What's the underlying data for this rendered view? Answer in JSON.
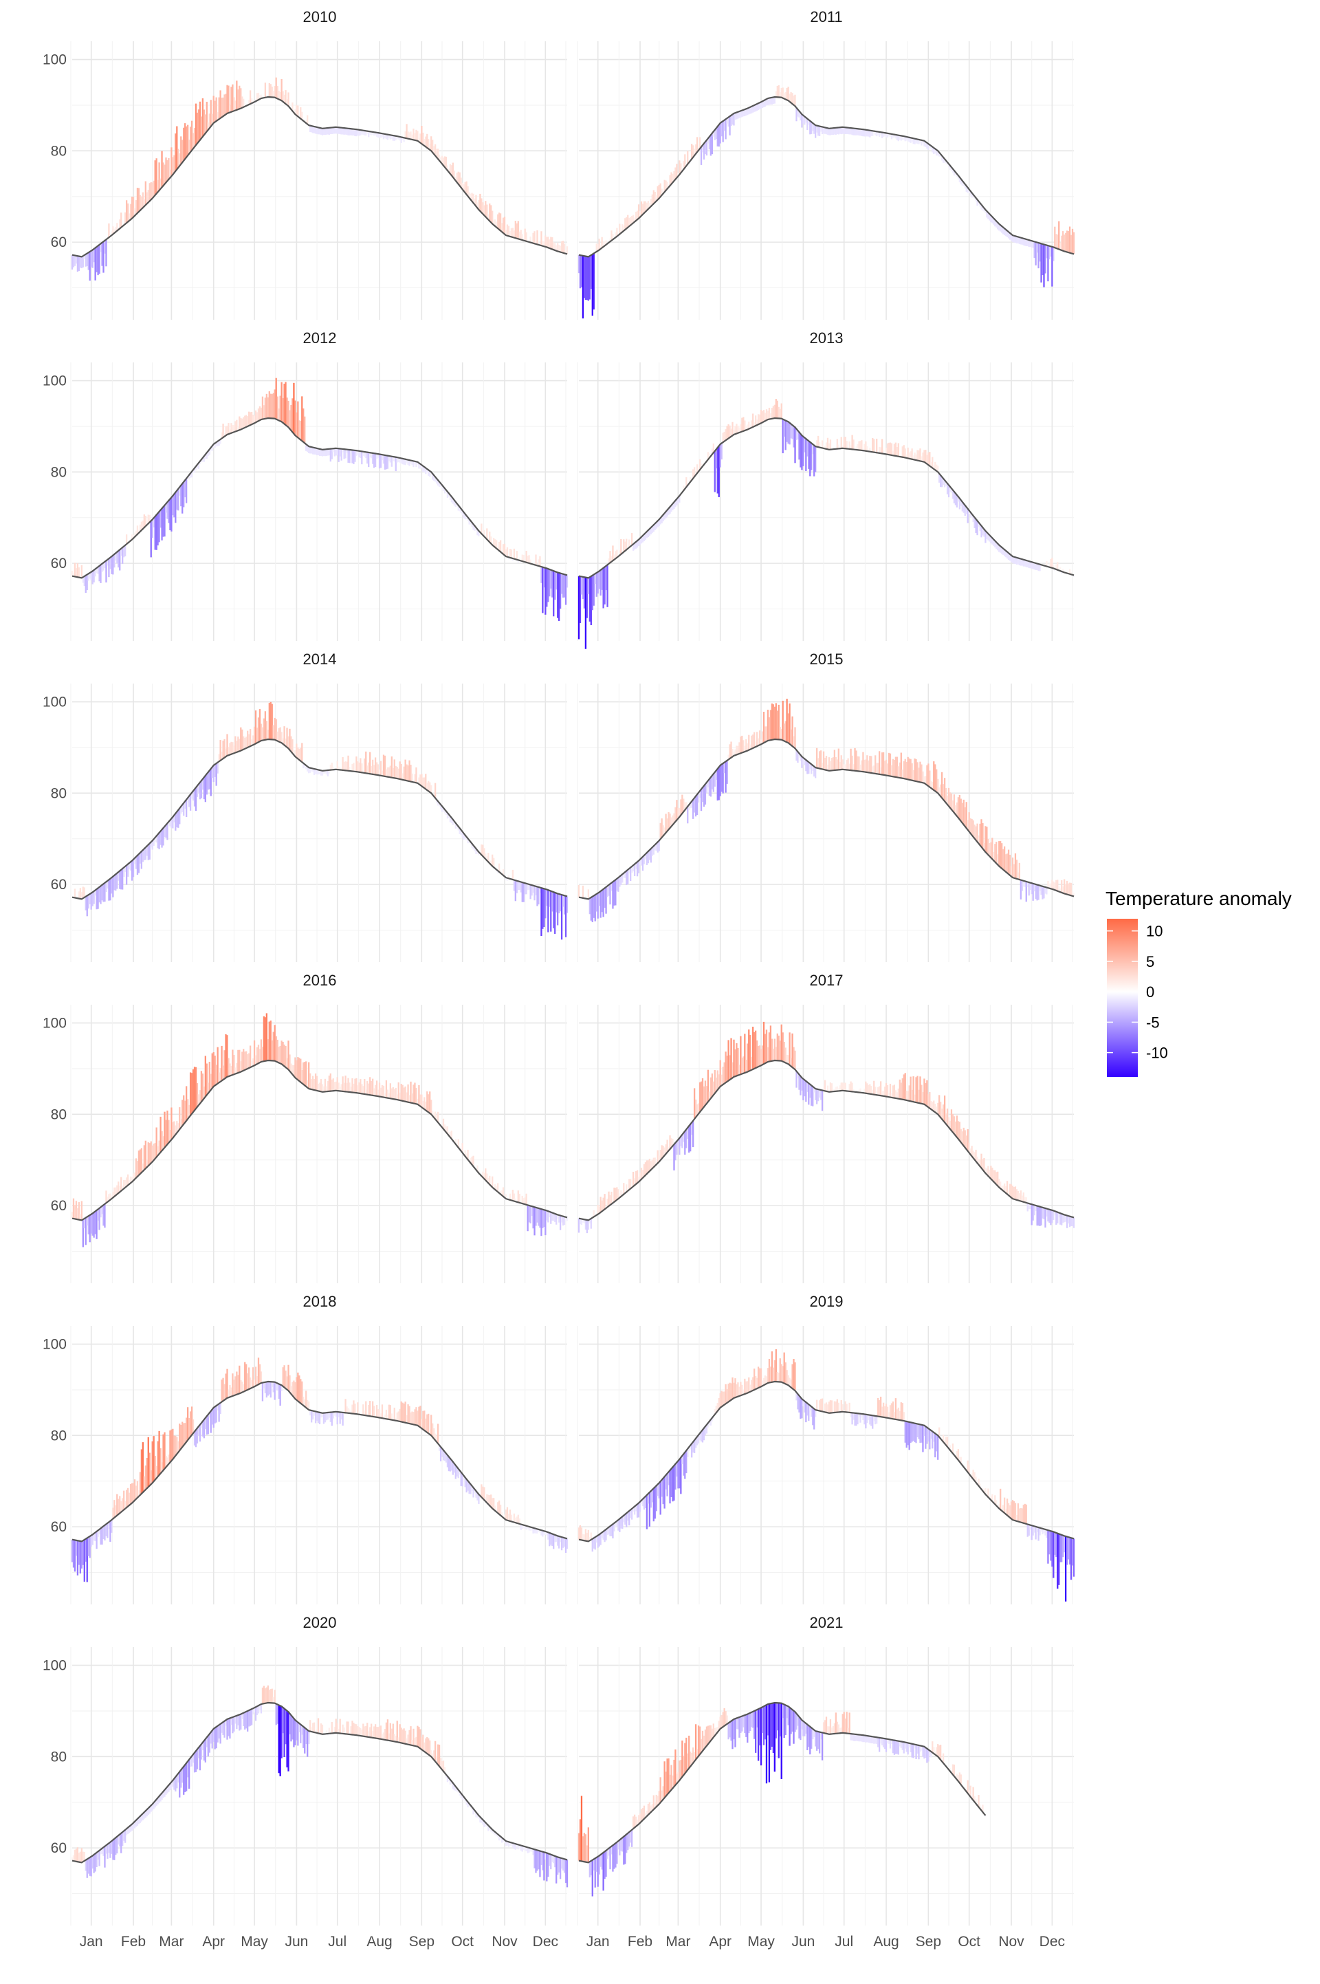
{
  "chart_data": {
    "type": "bar",
    "title": "",
    "xlabel": "",
    "ylabel": "",
    "ylim": [
      43,
      104
    ],
    "y_ticks": [
      60,
      80,
      100
    ],
    "y_tick_labels": [
      "60",
      "80",
      "100"
    ],
    "x_domain_days": [
      1,
      365
    ],
    "x_ticks_day": [
      15,
      46,
      74,
      105,
      135,
      166,
      196,
      227,
      258,
      288,
      319,
      349
    ],
    "x_tick_labels": [
      "Jan",
      "Feb",
      "Mar",
      "Apr",
      "May",
      "Jun",
      "Jul",
      "Aug",
      "Sep",
      "Oct",
      "Nov",
      "Dec"
    ],
    "grid": true,
    "legend": {
      "title": "Temperature anomaly",
      "position": "right",
      "ticks": [
        10,
        5,
        0,
        -5,
        -10
      ],
      "tick_labels": [
        "10",
        "5",
        "0",
        "-5",
        "-10"
      ],
      "range": [
        -14,
        12
      ],
      "low_color": "#3300ff",
      "mid_color": "#ffffff",
      "high_color": "#ff6a45"
    },
    "normal_line_color": "#555555",
    "normal_curve": {
      "day": [
        1,
        8,
        16,
        30,
        45,
        60,
        75,
        90,
        105,
        115,
        125,
        135,
        140,
        145,
        150,
        155,
        160,
        165,
        175,
        185,
        195,
        210,
        225,
        240,
        255,
        265,
        272,
        280,
        290,
        300,
        310,
        320,
        335,
        350,
        358,
        365
      ],
      "temp": [
        57.2,
        56.8,
        58.3,
        61.5,
        65.2,
        69.6,
        74.8,
        80.5,
        86.1,
        88.2,
        89.3,
        90.7,
        91.5,
        91.8,
        91.7,
        91.0,
        89.8,
        88.0,
        85.6,
        84.9,
        85.2,
        84.7,
        84.0,
        83.2,
        82.2,
        80.0,
        77.5,
        74.6,
        70.8,
        67.1,
        64.0,
        61.5,
        60.2,
        58.9,
        58.0,
        57.4
      ]
    },
    "panels": [
      {
        "name": "2010",
        "last_day": 365,
        "pattern": [
          [
            1,
            12,
            -2.5
          ],
          [
            13,
            26,
            -4.5
          ],
          [
            27,
            40,
            1.5
          ],
          [
            41,
            60,
            3.5
          ],
          [
            61,
            75,
            5
          ],
          [
            76,
            100,
            6
          ],
          [
            101,
            125,
            4
          ],
          [
            126,
            145,
            1.5
          ],
          [
            146,
            160,
            3
          ],
          [
            161,
            175,
            1
          ],
          [
            176,
            210,
            -1.5
          ],
          [
            211,
            245,
            -1
          ],
          [
            246,
            275,
            2.5
          ],
          [
            276,
            300,
            2
          ],
          [
            301,
            330,
            2.5
          ],
          [
            331,
            345,
            1.5
          ],
          [
            346,
            365,
            2
          ]
        ]
      },
      {
        "name": "2011",
        "last_day": 365,
        "pattern": [
          [
            1,
            12,
            -9
          ],
          [
            13,
            30,
            1
          ],
          [
            31,
            60,
            2
          ],
          [
            61,
            90,
            1.5
          ],
          [
            91,
            115,
            -3
          ],
          [
            116,
            145,
            -1.5
          ],
          [
            146,
            160,
            2
          ],
          [
            161,
            180,
            -2
          ],
          [
            181,
            215,
            -1.5
          ],
          [
            216,
            250,
            -1
          ],
          [
            251,
            300,
            -1
          ],
          [
            301,
            335,
            -1.5
          ],
          [
            336,
            350,
            -6
          ],
          [
            351,
            365,
            4
          ]
        ]
      },
      {
        "name": "2012",
        "last_day": 365,
        "pattern": [
          [
            1,
            8,
            1.5
          ],
          [
            9,
            40,
            -3
          ],
          [
            41,
            58,
            1.5
          ],
          [
            59,
            85,
            -5
          ],
          [
            86,
            110,
            -1
          ],
          [
            111,
            140,
            2
          ],
          [
            141,
            150,
            4
          ],
          [
            151,
            172,
            7
          ],
          [
            173,
            190,
            -1.5
          ],
          [
            191,
            240,
            -2
          ],
          [
            241,
            300,
            -1
          ],
          [
            301,
            345,
            1
          ],
          [
            346,
            365,
            -7
          ]
        ]
      },
      {
        "name": "2013",
        "last_day": 365,
        "pattern": [
          [
            1,
            10,
            -10
          ],
          [
            11,
            22,
            -6
          ],
          [
            23,
            40,
            1.5
          ],
          [
            41,
            75,
            -1.5
          ],
          [
            76,
            100,
            1
          ],
          [
            101,
            106,
            -8
          ],
          [
            107,
            140,
            2
          ],
          [
            141,
            150,
            3
          ],
          [
            151,
            175,
            -5
          ],
          [
            176,
            200,
            1
          ],
          [
            201,
            240,
            1.5
          ],
          [
            241,
            265,
            2
          ],
          [
            266,
            300,
            -2
          ],
          [
            301,
            340,
            -1.5
          ],
          [
            341,
            365,
            1
          ]
        ]
      },
      {
        "name": "2014",
        "last_day": 365,
        "pattern": [
          [
            1,
            10,
            1
          ],
          [
            11,
            40,
            -3
          ],
          [
            41,
            60,
            -3
          ],
          [
            61,
            90,
            -2.5
          ],
          [
            91,
            108,
            -4
          ],
          [
            109,
            135,
            3.5
          ],
          [
            136,
            148,
            5.5
          ],
          [
            149,
            170,
            3
          ],
          [
            171,
            190,
            -1
          ],
          [
            191,
            215,
            1.5
          ],
          [
            216,
            250,
            3
          ],
          [
            251,
            268,
            1.5
          ],
          [
            269,
            300,
            -1
          ],
          [
            301,
            325,
            1
          ],
          [
            326,
            345,
            -3
          ],
          [
            346,
            365,
            -7
          ]
        ]
      },
      {
        "name": "2015",
        "last_day": 365,
        "pattern": [
          [
            1,
            8,
            1.5
          ],
          [
            9,
            30,
            -4
          ],
          [
            31,
            60,
            -2
          ],
          [
            61,
            80,
            3
          ],
          [
            81,
            100,
            -3
          ],
          [
            101,
            110,
            -5
          ],
          [
            111,
            135,
            2.5
          ],
          [
            136,
            160,
            6
          ],
          [
            161,
            175,
            -2
          ],
          [
            176,
            200,
            3
          ],
          [
            201,
            260,
            3.5
          ],
          [
            261,
            290,
            4
          ],
          [
            291,
            325,
            4
          ],
          [
            326,
            345,
            -3
          ],
          [
            346,
            365,
            2
          ]
        ]
      },
      {
        "name": "2016",
        "last_day": 365,
        "pattern": [
          [
            1,
            8,
            3
          ],
          [
            9,
            25,
            -4
          ],
          [
            26,
            45,
            2
          ],
          [
            46,
            60,
            4
          ],
          [
            61,
            85,
            5
          ],
          [
            86,
            115,
            6
          ],
          [
            116,
            140,
            3.5
          ],
          [
            141,
            150,
            7
          ],
          [
            151,
            175,
            4
          ],
          [
            176,
            200,
            2.5
          ],
          [
            201,
            240,
            2.5
          ],
          [
            241,
            265,
            3
          ],
          [
            266,
            300,
            1
          ],
          [
            301,
            335,
            1
          ],
          [
            336,
            350,
            -4
          ],
          [
            351,
            365,
            -2
          ]
        ]
      },
      {
        "name": "2017",
        "last_day": 365,
        "pattern": [
          [
            1,
            10,
            -2
          ],
          [
            11,
            40,
            1.5
          ],
          [
            41,
            70,
            2
          ],
          [
            71,
            85,
            -5
          ],
          [
            86,
            110,
            4.5
          ],
          [
            111,
            145,
            6
          ],
          [
            146,
            160,
            5
          ],
          [
            161,
            180,
            -3
          ],
          [
            181,
            215,
            1
          ],
          [
            216,
            235,
            2
          ],
          [
            236,
            270,
            4
          ],
          [
            271,
            290,
            3
          ],
          [
            291,
            330,
            2
          ],
          [
            331,
            350,
            -3
          ],
          [
            351,
            365,
            -2
          ]
        ]
      },
      {
        "name": "2018",
        "last_day": 365,
        "pattern": [
          [
            1,
            12,
            -7
          ],
          [
            13,
            30,
            -3
          ],
          [
            31,
            50,
            3
          ],
          [
            51,
            65,
            7
          ],
          [
            66,
            90,
            5
          ],
          [
            91,
            110,
            -3
          ],
          [
            111,
            140,
            4
          ],
          [
            141,
            155,
            -3
          ],
          [
            156,
            175,
            4
          ],
          [
            176,
            200,
            -2
          ],
          [
            201,
            240,
            1.5
          ],
          [
            241,
            270,
            3
          ],
          [
            271,
            300,
            -2
          ],
          [
            301,
            330,
            1.5
          ],
          [
            331,
            350,
            -1
          ],
          [
            351,
            365,
            -2
          ]
        ]
      },
      {
        "name": "2019",
        "last_day": 365,
        "pattern": [
          [
            1,
            10,
            2
          ],
          [
            11,
            50,
            -2
          ],
          [
            51,
            80,
            -5
          ],
          [
            81,
            100,
            -2
          ],
          [
            101,
            115,
            3
          ],
          [
            116,
            140,
            3
          ],
          [
            141,
            160,
            4.5
          ],
          [
            161,
            175,
            -3
          ],
          [
            176,
            200,
            1.5
          ],
          [
            201,
            220,
            -2
          ],
          [
            221,
            240,
            3
          ],
          [
            241,
            265,
            -4
          ],
          [
            266,
            310,
            1
          ],
          [
            311,
            330,
            3
          ],
          [
            331,
            345,
            -2
          ],
          [
            346,
            365,
            -9
          ]
        ]
      },
      {
        "name": "2020",
        "last_day": 365,
        "pattern": [
          [
            1,
            10,
            2
          ],
          [
            11,
            40,
            -3
          ],
          [
            41,
            75,
            -1.5
          ],
          [
            76,
            100,
            -4
          ],
          [
            101,
            140,
            -3
          ],
          [
            141,
            150,
            2.5
          ],
          [
            151,
            160,
            -10
          ],
          [
            161,
            175,
            -4
          ],
          [
            176,
            205,
            1.5
          ],
          [
            206,
            230,
            2
          ],
          [
            231,
            275,
            3
          ],
          [
            276,
            300,
            -1
          ],
          [
            301,
            340,
            -1
          ],
          [
            341,
            365,
            -4
          ]
        ]
      },
      {
        "name": "2021",
        "last_day": 300,
        "pattern": [
          [
            1,
            8,
            9
          ],
          [
            9,
            20,
            -6
          ],
          [
            21,
            40,
            -4
          ],
          [
            41,
            60,
            2
          ],
          [
            61,
            90,
            5
          ],
          [
            91,
            110,
            3
          ],
          [
            111,
            130,
            -4
          ],
          [
            131,
            150,
            -11
          ],
          [
            151,
            160,
            -6
          ],
          [
            161,
            180,
            -4
          ],
          [
            181,
            200,
            3
          ],
          [
            201,
            220,
            -1.5
          ],
          [
            221,
            260,
            -2
          ],
          [
            261,
            300,
            1.5
          ]
        ]
      }
    ]
  }
}
